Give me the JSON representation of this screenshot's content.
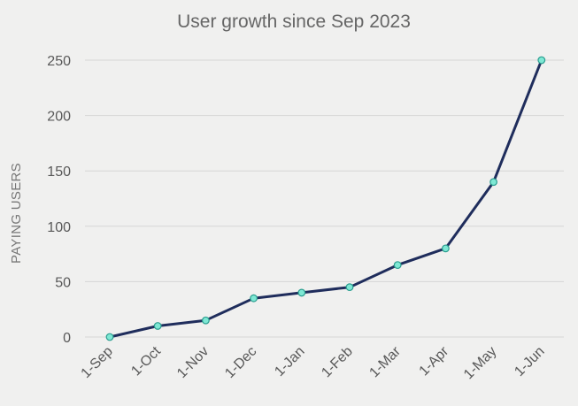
{
  "chart_data": {
    "type": "line",
    "title": "User growth since Sep 2023",
    "xlabel": "",
    "ylabel": "PAYING USERS",
    "categories": [
      "1-Sep",
      "1-Oct",
      "1-Nov",
      "1-Dec",
      "1-Jan",
      "1-Feb",
      "1-Mar",
      "1-Apr",
      "1-May",
      "1-Jun"
    ],
    "series": [
      {
        "values": [
          0,
          10,
          15,
          35,
          40,
          45,
          65,
          80,
          140,
          250
        ]
      }
    ],
    "ylim": [
      0,
      250
    ],
    "yticks": [
      "0",
      "50",
      "100",
      "150",
      "200",
      "250"
    ],
    "grid": true,
    "legend": "none",
    "colors": {
      "line": "#1f2d5c",
      "marker_fill": "#7ee8d4",
      "marker_stroke": "#2a9d8f",
      "grid": "#d6d6d6"
    }
  }
}
